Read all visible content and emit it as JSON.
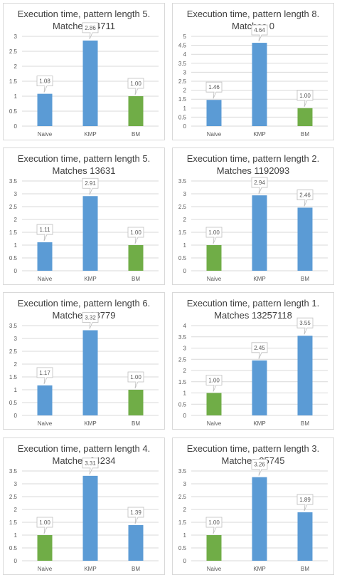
{
  "colors": {
    "blue": "#5b9bd5",
    "green": "#70ad47",
    "grid": "#d9d9d9",
    "text": "#595959"
  },
  "chart_data": [
    {
      "type": "bar",
      "title": "Execution time, pattern length 5.",
      "subtitle": "Matches 14711",
      "categories": [
        "Naive",
        "KMP",
        "BM"
      ],
      "values": [
        1.08,
        2.86,
        1.0
      ],
      "labels": [
        "1.08",
        "2.86",
        "1.00"
      ],
      "bar_colors": [
        "blue",
        "blue",
        "green"
      ],
      "ylim": [
        0,
        3
      ],
      "yticks": [
        "0",
        "0.5",
        "1",
        "1.5",
        "2",
        "2.5",
        "3"
      ],
      "grid": true
    },
    {
      "type": "bar",
      "title": "Execution time, pattern length 8.",
      "subtitle": "Matches 0",
      "categories": [
        "Naive",
        "KMP",
        "BM"
      ],
      "values": [
        1.46,
        4.64,
        1.0
      ],
      "labels": [
        "1.46",
        "4.64",
        "1.00"
      ],
      "bar_colors": [
        "blue",
        "blue",
        "green"
      ],
      "ylim": [
        0,
        5
      ],
      "yticks": [
        "0",
        "0.5",
        "1",
        "1.5",
        "2",
        "2.5",
        "3",
        "3.5",
        "4",
        "4.5",
        "5"
      ],
      "grid": true
    },
    {
      "type": "bar",
      "title": "Execution time, pattern length 5.",
      "subtitle": "Matches 13631",
      "categories": [
        "Naive",
        "KMP",
        "BM"
      ],
      "values": [
        1.11,
        2.91,
        1.0
      ],
      "labels": [
        "1.11",
        "2.91",
        "1.00"
      ],
      "bar_colors": [
        "blue",
        "blue",
        "green"
      ],
      "ylim": [
        0,
        3.5
      ],
      "yticks": [
        "0",
        "0.5",
        "1",
        "1.5",
        "2",
        "2.5",
        "3",
        "3.5"
      ],
      "grid": true
    },
    {
      "type": "bar",
      "title": "Execution time, pattern length 2.",
      "subtitle": "Matches 1192093",
      "categories": [
        "Naive",
        "KMP",
        "BM"
      ],
      "values": [
        1.0,
        2.94,
        2.46
      ],
      "labels": [
        "1.00",
        "2.94",
        "2.46"
      ],
      "bar_colors": [
        "green",
        "blue",
        "blue"
      ],
      "ylim": [
        0,
        3.5
      ],
      "yticks": [
        "0",
        "0.5",
        "1",
        "1.5",
        "2",
        "2.5",
        "3",
        "3.5"
      ],
      "grid": true
    },
    {
      "type": "bar",
      "title": "Execution time, pattern length 6.",
      "subtitle": "Matches 28779",
      "categories": [
        "Naive",
        "KMP",
        "BM"
      ],
      "values": [
        1.17,
        3.32,
        1.0
      ],
      "labels": [
        "1.17",
        "3.32",
        "1.00"
      ],
      "bar_colors": [
        "blue",
        "blue",
        "green"
      ],
      "ylim": [
        0,
        3.5
      ],
      "yticks": [
        "0",
        "0.5",
        "1",
        "1.5",
        "2",
        "2.5",
        "3",
        "3.5"
      ],
      "grid": true
    },
    {
      "type": "bar",
      "title": "Execution time, pattern length 1.",
      "subtitle": "Matches 13257118",
      "categories": [
        "Naive",
        "KMP",
        "BM"
      ],
      "values": [
        1.0,
        2.45,
        3.55
      ],
      "labels": [
        "1.00",
        "2.45",
        "3.55"
      ],
      "bar_colors": [
        "green",
        "blue",
        "blue"
      ],
      "ylim": [
        0,
        4
      ],
      "yticks": [
        "0",
        "0.5",
        "1",
        "1.5",
        "2",
        "2.5",
        "3",
        "3.5",
        "4"
      ],
      "grid": true
    },
    {
      "type": "bar",
      "title": "Execution time, pattern length 4.",
      "subtitle": "Matches 24234",
      "categories": [
        "Naive",
        "KMP",
        "BM"
      ],
      "values": [
        1.0,
        3.31,
        1.39
      ],
      "labels": [
        "1.00",
        "3.31",
        "1.39"
      ],
      "bar_colors": [
        "green",
        "blue",
        "blue"
      ],
      "ylim": [
        0,
        3.5
      ],
      "yticks": [
        "0",
        "0.5",
        "1",
        "1.5",
        "2",
        "2.5",
        "3",
        "3.5"
      ],
      "grid": true
    },
    {
      "type": "bar",
      "title": "Execution time, pattern length 3.",
      "subtitle": "Matches 25745",
      "categories": [
        "Naive",
        "KMP",
        "BM"
      ],
      "values": [
        1.0,
        3.26,
        1.89
      ],
      "labels": [
        "1.00",
        "3.26",
        "1.89"
      ],
      "bar_colors": [
        "green",
        "blue",
        "blue"
      ],
      "ylim": [
        0,
        3.5
      ],
      "yticks": [
        "0",
        "0.5",
        "1",
        "1.5",
        "2",
        "2.5",
        "3",
        "3.5"
      ],
      "grid": true
    }
  ]
}
